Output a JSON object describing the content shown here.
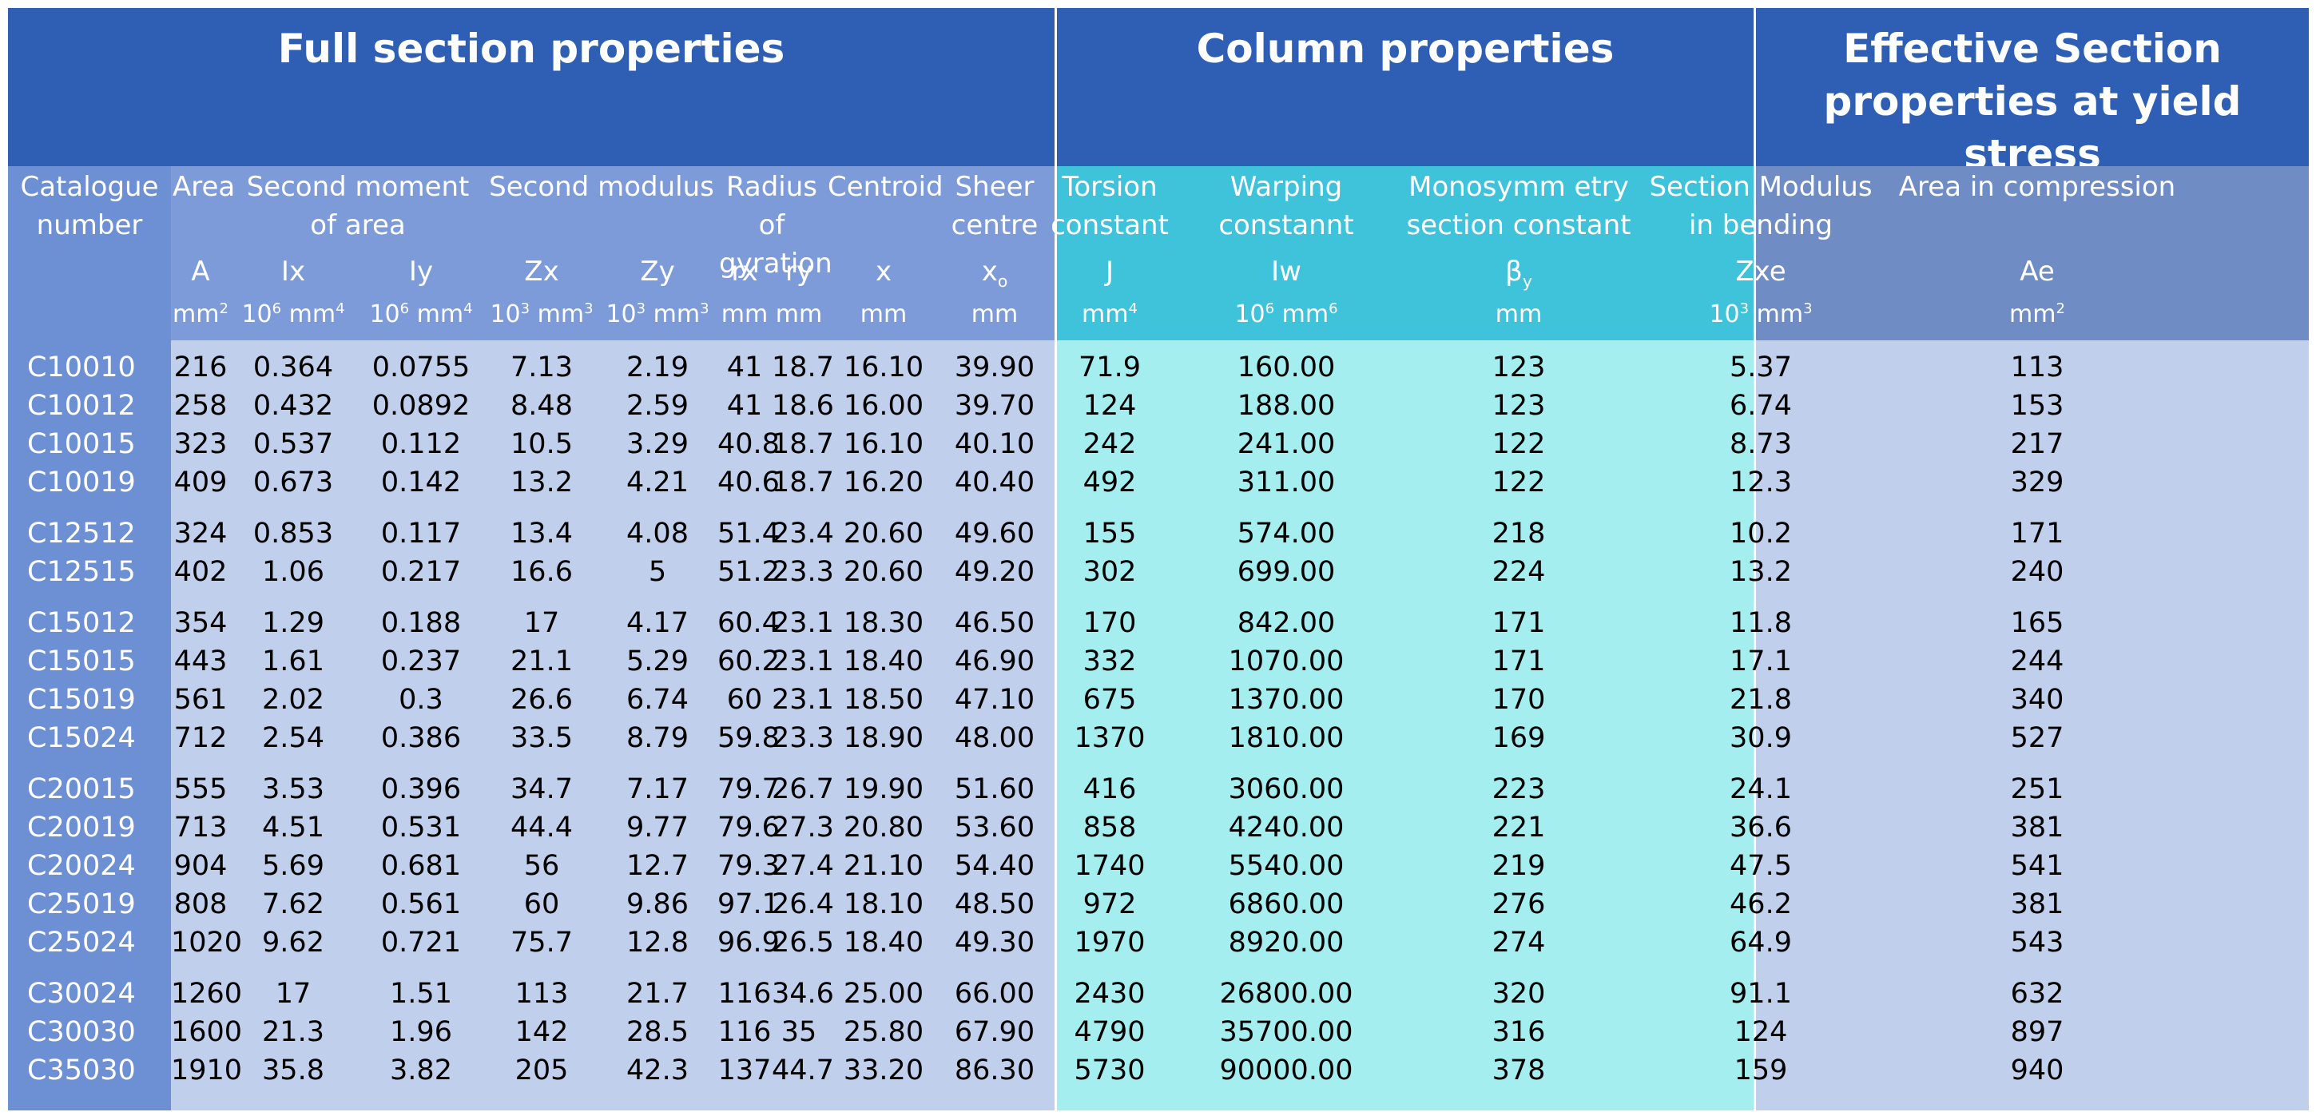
{
  "groups": [
    {
      "title": "Full section properties"
    },
    {
      "title": "Column properties"
    },
    {
      "title": "Effective Section properties at yield stress"
    }
  ],
  "colors": {
    "group_title_bg": "#2e5fb5",
    "catalogue_col_bg": "#6d8fd4",
    "full_header_bg": "#7e9bd9",
    "full_body_bg": "#c0cfeb",
    "column_header_bg": "#3fc3da",
    "column_body_bg": "#a5eef0",
    "effective_header_bg": "#6f8cc4",
    "effective_body_bg": "#c0cfeb",
    "divider": "#ffffff"
  },
  "header": {
    "labels": [
      {
        "text": "Catalogue number"
      },
      {
        "text": "Area"
      },
      {
        "text": "Second moment of area"
      },
      {
        "text": "Second modulus"
      },
      {
        "text": "Radius of gyration"
      },
      {
        "text": "Centroid"
      },
      {
        "text": "Sheer centre"
      },
      {
        "text": "Torsion constant"
      },
      {
        "text": "Warping constannt"
      },
      {
        "text": "Monosymm etry section constant"
      },
      {
        "text": "Section Modulus in bending"
      },
      {
        "text": "Area in compression"
      }
    ],
    "symbols": [
      {
        "text": ""
      },
      {
        "text": "A"
      },
      {
        "text": "Ix"
      },
      {
        "text": "Iy"
      },
      {
        "text": "Zx"
      },
      {
        "text": "Zy"
      },
      {
        "text": "rx"
      },
      {
        "text": "ry"
      },
      {
        "text": "x"
      },
      {
        "base": "x",
        "sub": "o"
      },
      {
        "text": "J"
      },
      {
        "text": "Iw"
      },
      {
        "base": "β",
        "sub": "y"
      },
      {
        "text": "Zxe"
      },
      {
        "text": "Ae"
      }
    ],
    "units": [
      {
        "base": "",
        "sup": ""
      },
      {
        "base": "mm",
        "sup": "2"
      },
      {
        "base": "10",
        "sup": "6",
        "tail": " mm",
        "sup2": "4"
      },
      {
        "base": "10",
        "sup": "6",
        "tail": " mm",
        "sup2": "4"
      },
      {
        "base": "10",
        "sup": "3",
        "tail": " mm",
        "sup2": "3"
      },
      {
        "base": "10",
        "sup": "3",
        "tail": " mm",
        "sup2": "3"
      },
      {
        "base": "mm",
        "sup": ""
      },
      {
        "base": "mm",
        "sup": ""
      },
      {
        "base": "mm",
        "sup": ""
      },
      {
        "base": "mm",
        "sup": ""
      },
      {
        "base": "mm",
        "sup": "4"
      },
      {
        "base": "10",
        "sup": "6",
        "tail": " mm",
        "sup2": "6"
      },
      {
        "base": "mm",
        "sup": ""
      },
      {
        "base": "10",
        "sup": "3",
        "tail": " mm",
        "sup2": "3"
      },
      {
        "base": "mm",
        "sup": "2"
      }
    ]
  },
  "rows": [
    [
      "C10010",
      "216",
      "0.364",
      "0.0755",
      "7.13",
      "2.19",
      "41",
      "18.7",
      "16.10",
      "39.90",
      "71.9",
      "160.00",
      "123",
      "5.37",
      "113"
    ],
    [
      "C10012",
      "258",
      "0.432",
      "0.0892",
      "8.48",
      "2.59",
      "41",
      "18.6",
      "16.00",
      "39.70",
      "124",
      "188.00",
      "123",
      "6.74",
      "153"
    ],
    [
      "C10015",
      "323",
      "0.537",
      "0.112",
      "10.5",
      "3.29",
      "40.8",
      "18.7",
      "16.10",
      "40.10",
      "242",
      "241.00",
      "122",
      "8.73",
      "217"
    ],
    [
      "C10019",
      "409",
      "0.673",
      "0.142",
      "13.2",
      "4.21",
      "40.6",
      "18.7",
      "16.20",
      "40.40",
      "492",
      "311.00",
      "122",
      "12.3",
      "329"
    ],
    [
      "C12512",
      "324",
      "0.853",
      "0.117",
      "13.4",
      "4.08",
      "51.4",
      "23.4",
      "20.60",
      "49.60",
      "155",
      "574.00",
      "218",
      "10.2",
      "171"
    ],
    [
      "C12515",
      "402",
      "1.06",
      "0.217",
      "16.6",
      "5",
      "51.2",
      "23.3",
      "20.60",
      "49.20",
      "302",
      "699.00",
      "224",
      "13.2",
      "240"
    ],
    [
      "C15012",
      "354",
      "1.29",
      "0.188",
      "17",
      "4.17",
      "60.4",
      "23.1",
      "18.30",
      "46.50",
      "170",
      "842.00",
      "171",
      "11.8",
      "165"
    ],
    [
      "C15015",
      "443",
      "1.61",
      "0.237",
      "21.1",
      "5.29",
      "60.2",
      "23.1",
      "18.40",
      "46.90",
      "332",
      "1070.00",
      "171",
      "17.1",
      "244"
    ],
    [
      "C15019",
      "561",
      "2.02",
      "0.3",
      "26.6",
      "6.74",
      "60",
      "23.1",
      "18.50",
      "47.10",
      "675",
      "1370.00",
      "170",
      "21.8",
      "340"
    ],
    [
      "C15024",
      "712",
      "2.54",
      "0.386",
      "33.5",
      "8.79",
      "59.8",
      "23.3",
      "18.90",
      "48.00",
      "1370",
      "1810.00",
      "169",
      "30.9",
      "527"
    ],
    [
      "C20015",
      "555",
      "3.53",
      "0.396",
      "34.7",
      "7.17",
      "79.7",
      "26.7",
      "19.90",
      "51.60",
      "416",
      "3060.00",
      "223",
      "24.1",
      "251"
    ],
    [
      "C20019",
      "713",
      "4.51",
      "0.531",
      "44.4",
      "9.77",
      "79.6",
      "27.3",
      "20.80",
      "53.60",
      "858",
      "4240.00",
      "221",
      "36.6",
      "381"
    ],
    [
      "C20024",
      "904",
      "5.69",
      "0.681",
      "56",
      "12.7",
      "79.3",
      "27.4",
      "21.10",
      "54.40",
      "1740",
      "5540.00",
      "219",
      "47.5",
      "541"
    ],
    [
      "C25019",
      "808",
      "7.62",
      "0.561",
      "60",
      "9.86",
      "97.1",
      "26.4",
      "18.10",
      "48.50",
      "972",
      "6860.00",
      "276",
      "46.2",
      "381"
    ],
    [
      "C25024",
      "1020",
      "9.62",
      "0.721",
      "75.7",
      "12.8",
      "96.9",
      "26.5",
      "18.40",
      "49.30",
      "1970",
      "8920.00",
      "274",
      "64.9",
      "543"
    ],
    [
      "C30024",
      "1260",
      "17",
      "1.51",
      "113",
      "21.7",
      "116",
      "34.6",
      "25.00",
      "66.00",
      "2430",
      "26800.00",
      "320",
      "91.1",
      "632"
    ],
    [
      "C30030",
      "1600",
      "21.3",
      "1.96",
      "142",
      "28.5",
      "116",
      "35",
      "25.80",
      "67.90",
      "4790",
      "35700.00",
      "316",
      "124",
      "897"
    ],
    [
      "C35030",
      "1910",
      "35.8",
      "3.82",
      "205",
      "42.3",
      "137",
      "44.7",
      "33.20",
      "86.30",
      "5730",
      "90000.00",
      "378",
      "159",
      "940"
    ]
  ]
}
